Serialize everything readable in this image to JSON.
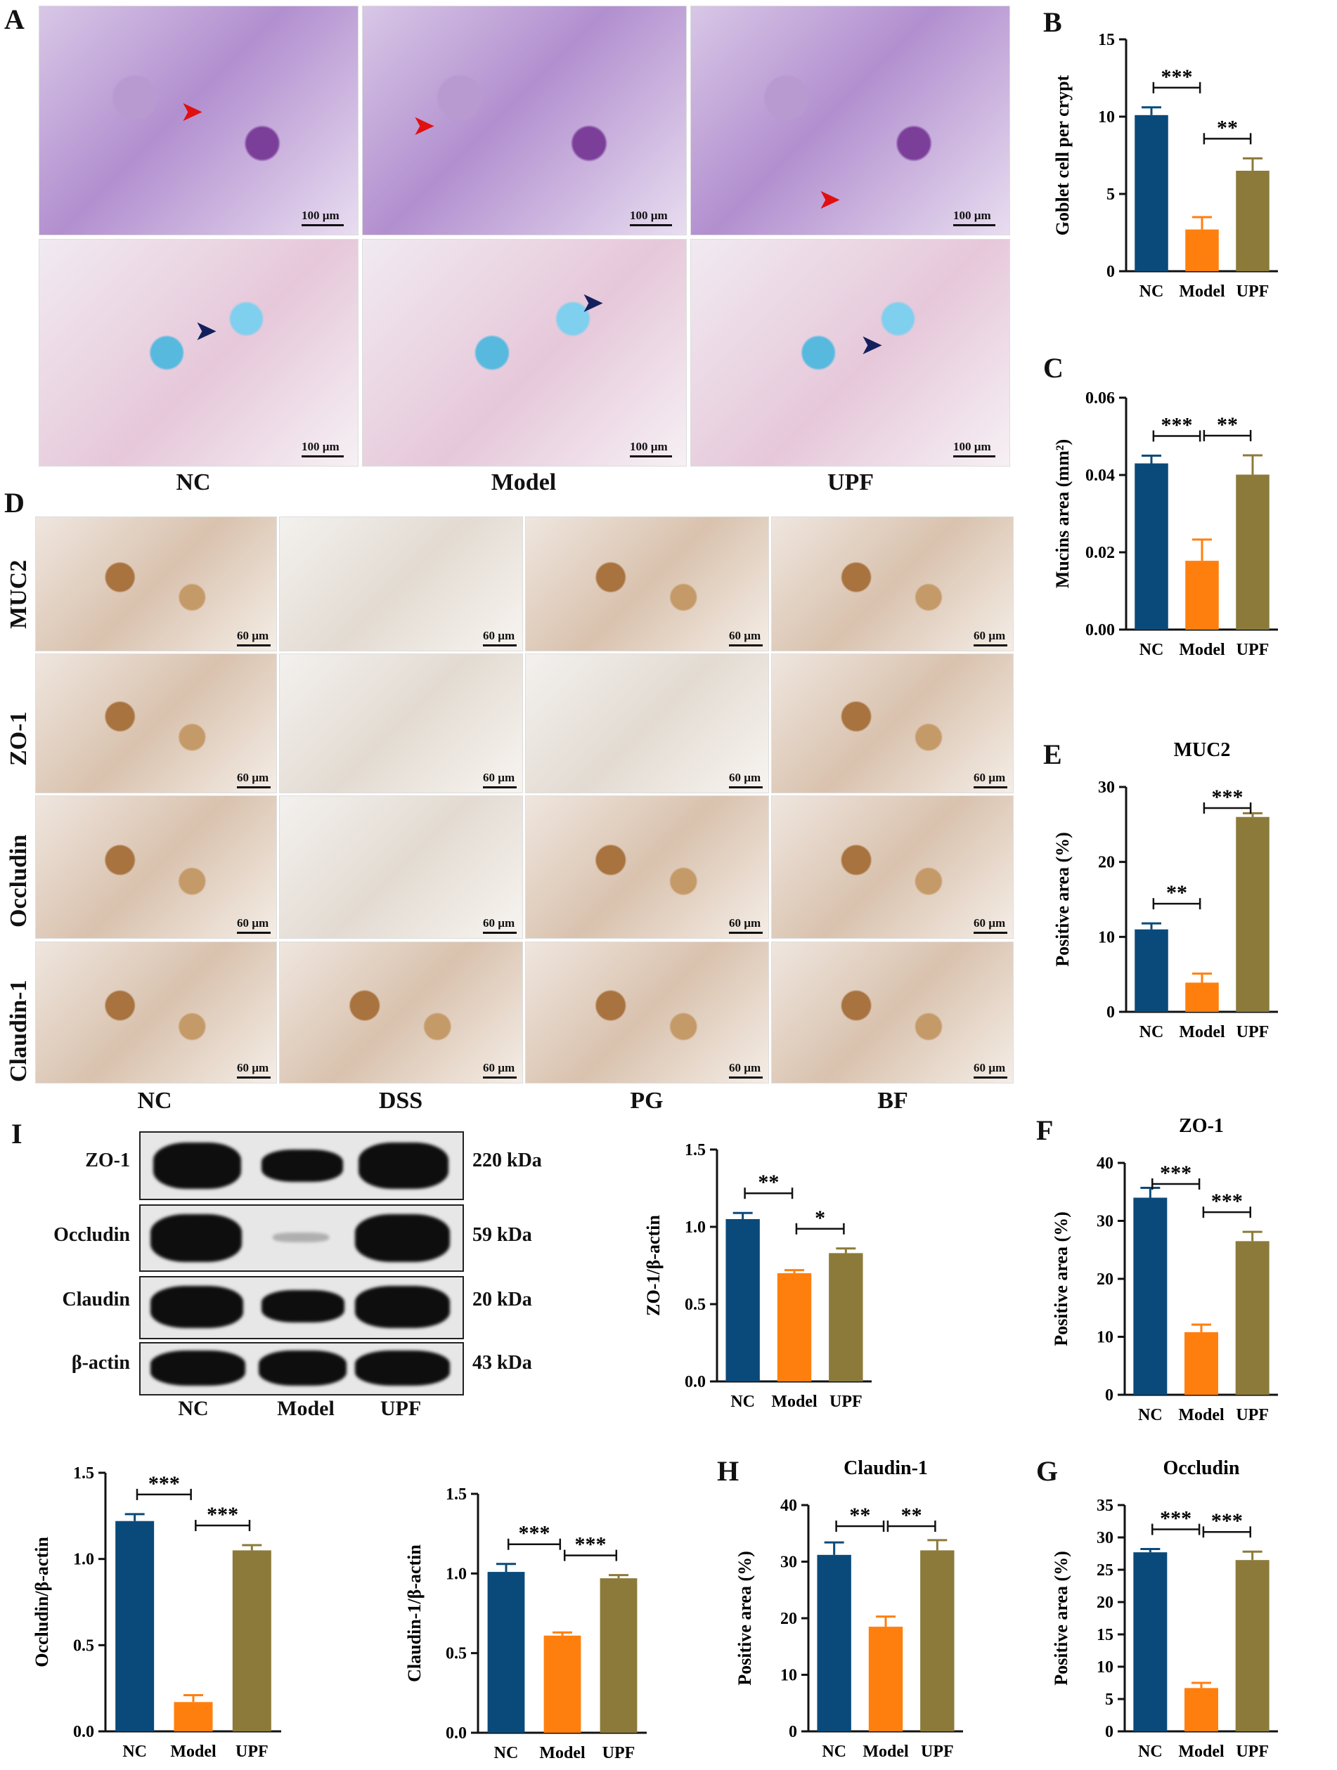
{
  "panels": {
    "A": "A",
    "B": "B",
    "C": "C",
    "D": "D",
    "E": "E",
    "F": "F",
    "G": "G",
    "H": "H",
    "I": "I"
  },
  "panel_a": {
    "scale_label": "100 µm",
    "columns": [
      "NC",
      "Model",
      "UPF"
    ]
  },
  "panel_d": {
    "scale_label": "60 µm",
    "rows": [
      "MUC2",
      "ZO-1",
      "Occludin",
      "Claudin-1"
    ],
    "columns": [
      "NC",
      "DSS",
      "PG",
      "BF"
    ]
  },
  "panel_i": {
    "proteins": [
      "ZO-1",
      "Occludin",
      "Claudin",
      "β-actin"
    ],
    "sizes": [
      "220 kDa",
      "59 kDa",
      "20 kDa",
      "43 kDa"
    ],
    "lanes": [
      "NC",
      "Model",
      "UPF"
    ]
  },
  "colors": {
    "NC": "#0a4a7a",
    "Model": "#ff7f0e",
    "UPF": "#8b7a3a"
  },
  "chart_data": [
    {
      "id": "B",
      "type": "bar",
      "title": "",
      "ylabel": "Goblet cell per crypt",
      "categories": [
        "NC",
        "Model",
        "UPF"
      ],
      "values": [
        10.1,
        2.7,
        6.5
      ],
      "errors": [
        0.5,
        0.8,
        0.8
      ],
      "ylim": [
        0,
        15
      ],
      "yticks": [
        "0",
        "5",
        "10",
        "15"
      ],
      "sig": [
        {
          "from": 0,
          "to": 1,
          "label": "***"
        },
        {
          "from": 1,
          "to": 2,
          "label": "**"
        }
      ]
    },
    {
      "id": "C",
      "type": "bar",
      "title": "",
      "ylabel": "Mucins area (mm²)",
      "categories": [
        "NC",
        "Model",
        "UPF"
      ],
      "values": [
        0.043,
        0.0178,
        0.0401
      ],
      "errors": [
        0.002,
        0.0055,
        0.005
      ],
      "ylim": [
        0,
        0.06
      ],
      "yticks": [
        "0.00",
        "0.02",
        "0.04",
        "0.06"
      ],
      "sig": [
        {
          "from": 0,
          "to": 1,
          "label": "***"
        },
        {
          "from": 1,
          "to": 2,
          "label": "**"
        }
      ]
    },
    {
      "id": "E",
      "type": "bar",
      "title": "MUC2",
      "ylabel": "Positive area (%)",
      "categories": [
        "NC",
        "Model",
        "UPF"
      ],
      "values": [
        11.0,
        3.9,
        26.0
      ],
      "errors": [
        0.8,
        1.2,
        0.5
      ],
      "ylim": [
        0,
        30
      ],
      "yticks": [
        "0",
        "10",
        "20",
        "30"
      ],
      "sig": [
        {
          "from": 0,
          "to": 1,
          "label": "**"
        },
        {
          "from": 1,
          "to": 2,
          "label": "***"
        }
      ]
    },
    {
      "id": "F",
      "type": "bar",
      "title": "ZO-1",
      "ylabel": "Positive area (%)",
      "categories": [
        "NC",
        "Model",
        "UPF"
      ],
      "values": [
        34.0,
        10.8,
        26.5
      ],
      "errors": [
        1.7,
        1.3,
        1.6
      ],
      "ylim": [
        0,
        40
      ],
      "yticks": [
        "0",
        "10",
        "20",
        "30",
        "40"
      ],
      "sig": [
        {
          "from": 0,
          "to": 1,
          "label": "***"
        },
        {
          "from": 1,
          "to": 2,
          "label": "***"
        }
      ]
    },
    {
      "id": "ZO1blot",
      "type": "bar",
      "title": "",
      "ylabel": "ZO-1/β-actin",
      "categories": [
        "NC",
        "Model",
        "UPF"
      ],
      "values": [
        1.05,
        0.7,
        0.83
      ],
      "errors": [
        0.04,
        0.02,
        0.03
      ],
      "ylim": [
        0,
        1.5
      ],
      "yticks": [
        "0.0",
        "0.5",
        "1.0",
        "1.5"
      ],
      "sig": [
        {
          "from": 0,
          "to": 1,
          "label": "**"
        },
        {
          "from": 1,
          "to": 2,
          "label": "*"
        }
      ]
    },
    {
      "id": "OCCblot",
      "type": "bar",
      "title": "",
      "ylabel": "Occludin/β-actin",
      "categories": [
        "NC",
        "Model",
        "UPF"
      ],
      "values": [
        1.22,
        0.17,
        1.05
      ],
      "errors": [
        0.04,
        0.04,
        0.03
      ],
      "ylim": [
        0,
        1.5
      ],
      "yticks": [
        "0.0",
        "0.5",
        "1.0",
        "1.5"
      ],
      "sig": [
        {
          "from": 0,
          "to": 1,
          "label": "***"
        },
        {
          "from": 1,
          "to": 2,
          "label": "***"
        }
      ]
    },
    {
      "id": "CLDblot",
      "type": "bar",
      "title": "",
      "ylabel": "Claudin-1/β-actin",
      "categories": [
        "NC",
        "Model",
        "UPF"
      ],
      "values": [
        1.01,
        0.61,
        0.97
      ],
      "errors": [
        0.05,
        0.02,
        0.02
      ],
      "ylim": [
        0,
        1.5
      ],
      "yticks": [
        "0.0",
        "0.5",
        "1.0",
        "1.5"
      ],
      "sig": [
        {
          "from": 0,
          "to": 1,
          "label": "***"
        },
        {
          "from": 1,
          "to": 2,
          "label": "***"
        }
      ]
    },
    {
      "id": "H",
      "type": "bar",
      "title": "Claudin-1",
      "ylabel": "Positive area (%)",
      "categories": [
        "NC",
        "Model",
        "UPF"
      ],
      "values": [
        31.2,
        18.5,
        32.0
      ],
      "errors": [
        2.2,
        1.8,
        1.8
      ],
      "ylim": [
        0,
        40
      ],
      "yticks": [
        "0",
        "10",
        "20",
        "30",
        "40"
      ],
      "sig": [
        {
          "from": 0,
          "to": 1,
          "label": "**"
        },
        {
          "from": 1,
          "to": 2,
          "label": "**"
        }
      ]
    },
    {
      "id": "G",
      "type": "bar",
      "title": "Occludin",
      "ylabel": "Positive area (%)",
      "categories": [
        "NC",
        "Model",
        "UPF"
      ],
      "values": [
        27.7,
        6.7,
        26.5
      ],
      "errors": [
        0.5,
        0.8,
        1.3
      ],
      "ylim": [
        0,
        35
      ],
      "yticks": [
        "0",
        "5",
        "10",
        "15",
        "20",
        "25",
        "30",
        "35"
      ],
      "sig": [
        {
          "from": 0,
          "to": 1,
          "label": "***"
        },
        {
          "from": 1,
          "to": 2,
          "label": "***"
        }
      ]
    }
  ]
}
